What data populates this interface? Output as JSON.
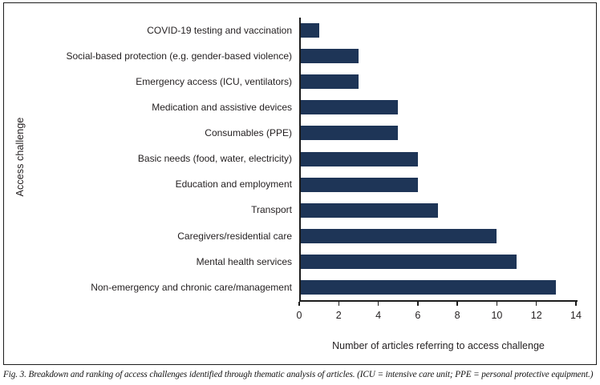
{
  "chart_data": {
    "type": "bar",
    "orientation": "horizontal",
    "title": "",
    "categories": [
      "COVID-19 testing and vaccination",
      "Social-based protection (e.g. gender-based violence)",
      "Emergency access (ICU, ventilators)",
      "Medication and assistive devices",
      "Consumables (PPE)",
      "Basic needs (food, water, electricity)",
      "Education and employment",
      "Transport",
      "Caregivers/residential care",
      "Mental health services",
      "Non-emergency and chronic care/management"
    ],
    "values": [
      1,
      3,
      3,
      5,
      5,
      6,
      6,
      7,
      10,
      11,
      13
    ],
    "xlabel": "Number of articles referring to access challenge",
    "ylabel": "Access challenge",
    "xlim": [
      0,
      14
    ],
    "xticks": [
      0,
      2,
      4,
      6,
      8,
      10,
      12,
      14
    ],
    "bar_color": "#1e3557",
    "axis_color": "#1c1c1c",
    "grid": false,
    "legend": "none"
  },
  "caption": "Fig. 3. Breakdown and ranking of access challenges identified through thematic analysis of articles. (ICU = intensive care unit; PPE = personal protective equipment.)"
}
